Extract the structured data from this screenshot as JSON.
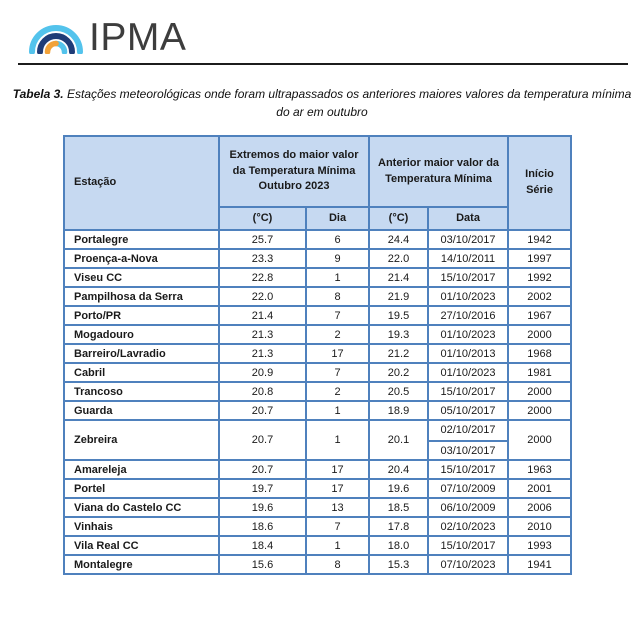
{
  "colors": {
    "table_border": "#4f81bd",
    "header_fill": "#c6d9f1",
    "rule": "#1c1c1c",
    "logo_cyan": "#53c3ec",
    "logo_navy": "#1f3c77",
    "logo_orange": "#f2a239",
    "logo_text": "#3d3d3d"
  },
  "logo": {
    "text": "IPMA"
  },
  "caption": {
    "label": "Tabela 3.",
    "line1": "Estações meteorológicas onde foram ultrapassados os anteriores maiores valores da temperatura mínima",
    "line2": "do ar em outubro"
  },
  "table": {
    "columns": {
      "station": "Estação",
      "group_2023": "Extremos do maior valor da Temperatura Mínima Outubro 2023",
      "group_previous": "Anterior maior valor da Temperatura Mínima",
      "series_start": "Início Série",
      "sub_temp_2023": "(°C)",
      "sub_day": "Dia",
      "sub_temp_prev": "(°C)",
      "sub_date": "Data"
    },
    "rows": [
      {
        "station": "Portalegre",
        "temp_2023": "25.7",
        "day": "6",
        "prev_temp": "24.4",
        "prev_dates": [
          "03/10/2017"
        ],
        "series_start": "1942"
      },
      {
        "station": "Proença-a-Nova",
        "temp_2023": "23.3",
        "day": "9",
        "prev_temp": "22.0",
        "prev_dates": [
          "14/10/2011"
        ],
        "series_start": "1997"
      },
      {
        "station": "Viseu CC",
        "temp_2023": "22.8",
        "day": "1",
        "prev_temp": "21.4",
        "prev_dates": [
          "15/10/2017"
        ],
        "series_start": "1992"
      },
      {
        "station": "Pampilhosa da Serra",
        "temp_2023": "22.0",
        "day": "8",
        "prev_temp": "21.9",
        "prev_dates": [
          "01/10/2023"
        ],
        "series_start": "2002"
      },
      {
        "station": "Porto/PR",
        "temp_2023": "21.4",
        "day": "7",
        "prev_temp": "19.5",
        "prev_dates": [
          "27/10/2016"
        ],
        "series_start": "1967"
      },
      {
        "station": "Mogadouro",
        "temp_2023": "21.3",
        "day": "2",
        "prev_temp": "19.3",
        "prev_dates": [
          "01/10/2023"
        ],
        "series_start": "2000"
      },
      {
        "station": "Barreiro/Lavradio",
        "temp_2023": "21.3",
        "day": "17",
        "prev_temp": "21.2",
        "prev_dates": [
          "01/10/2013"
        ],
        "series_start": "1968"
      },
      {
        "station": "Cabril",
        "temp_2023": "20.9",
        "day": "7",
        "prev_temp": "20.2",
        "prev_dates": [
          "01/10/2023"
        ],
        "series_start": "1981"
      },
      {
        "station": "Trancoso",
        "temp_2023": "20.8",
        "day": "2",
        "prev_temp": "20.5",
        "prev_dates": [
          "15/10/2017"
        ],
        "series_start": "2000"
      },
      {
        "station": "Guarda",
        "temp_2023": "20.7",
        "day": "1",
        "prev_temp": "18.9",
        "prev_dates": [
          "05/10/2017"
        ],
        "series_start": "2000"
      },
      {
        "station": "Zebreira",
        "temp_2023": "20.7",
        "day": "1",
        "prev_temp": "20.1",
        "prev_dates": [
          "02/10/2017",
          "03/10/2017"
        ],
        "series_start": "2000"
      },
      {
        "station": "Amareleja",
        "temp_2023": "20.7",
        "day": "17",
        "prev_temp": "20.4",
        "prev_dates": [
          "15/10/2017"
        ],
        "series_start": "1963"
      },
      {
        "station": "Portel",
        "temp_2023": "19.7",
        "day": "17",
        "prev_temp": "19.6",
        "prev_dates": [
          "07/10/2009"
        ],
        "series_start": "2001"
      },
      {
        "station": "Viana do Castelo CC",
        "temp_2023": "19.6",
        "day": "13",
        "prev_temp": "18.5",
        "prev_dates": [
          "06/10/2009"
        ],
        "series_start": "2006"
      },
      {
        "station": "Vinhais",
        "temp_2023": "18.6",
        "day": "7",
        "prev_temp": "17.8",
        "prev_dates": [
          "02/10/2023"
        ],
        "series_start": "2010"
      },
      {
        "station": "Vila Real CC",
        "temp_2023": "18.4",
        "day": "1",
        "prev_temp": "18.0",
        "prev_dates": [
          "15/10/2017"
        ],
        "series_start": "1993"
      },
      {
        "station": "Montalegre",
        "temp_2023": "15.6",
        "day": "8",
        "prev_temp": "15.3",
        "prev_dates": [
          "07/10/2023"
        ],
        "series_start": "1941"
      }
    ]
  }
}
